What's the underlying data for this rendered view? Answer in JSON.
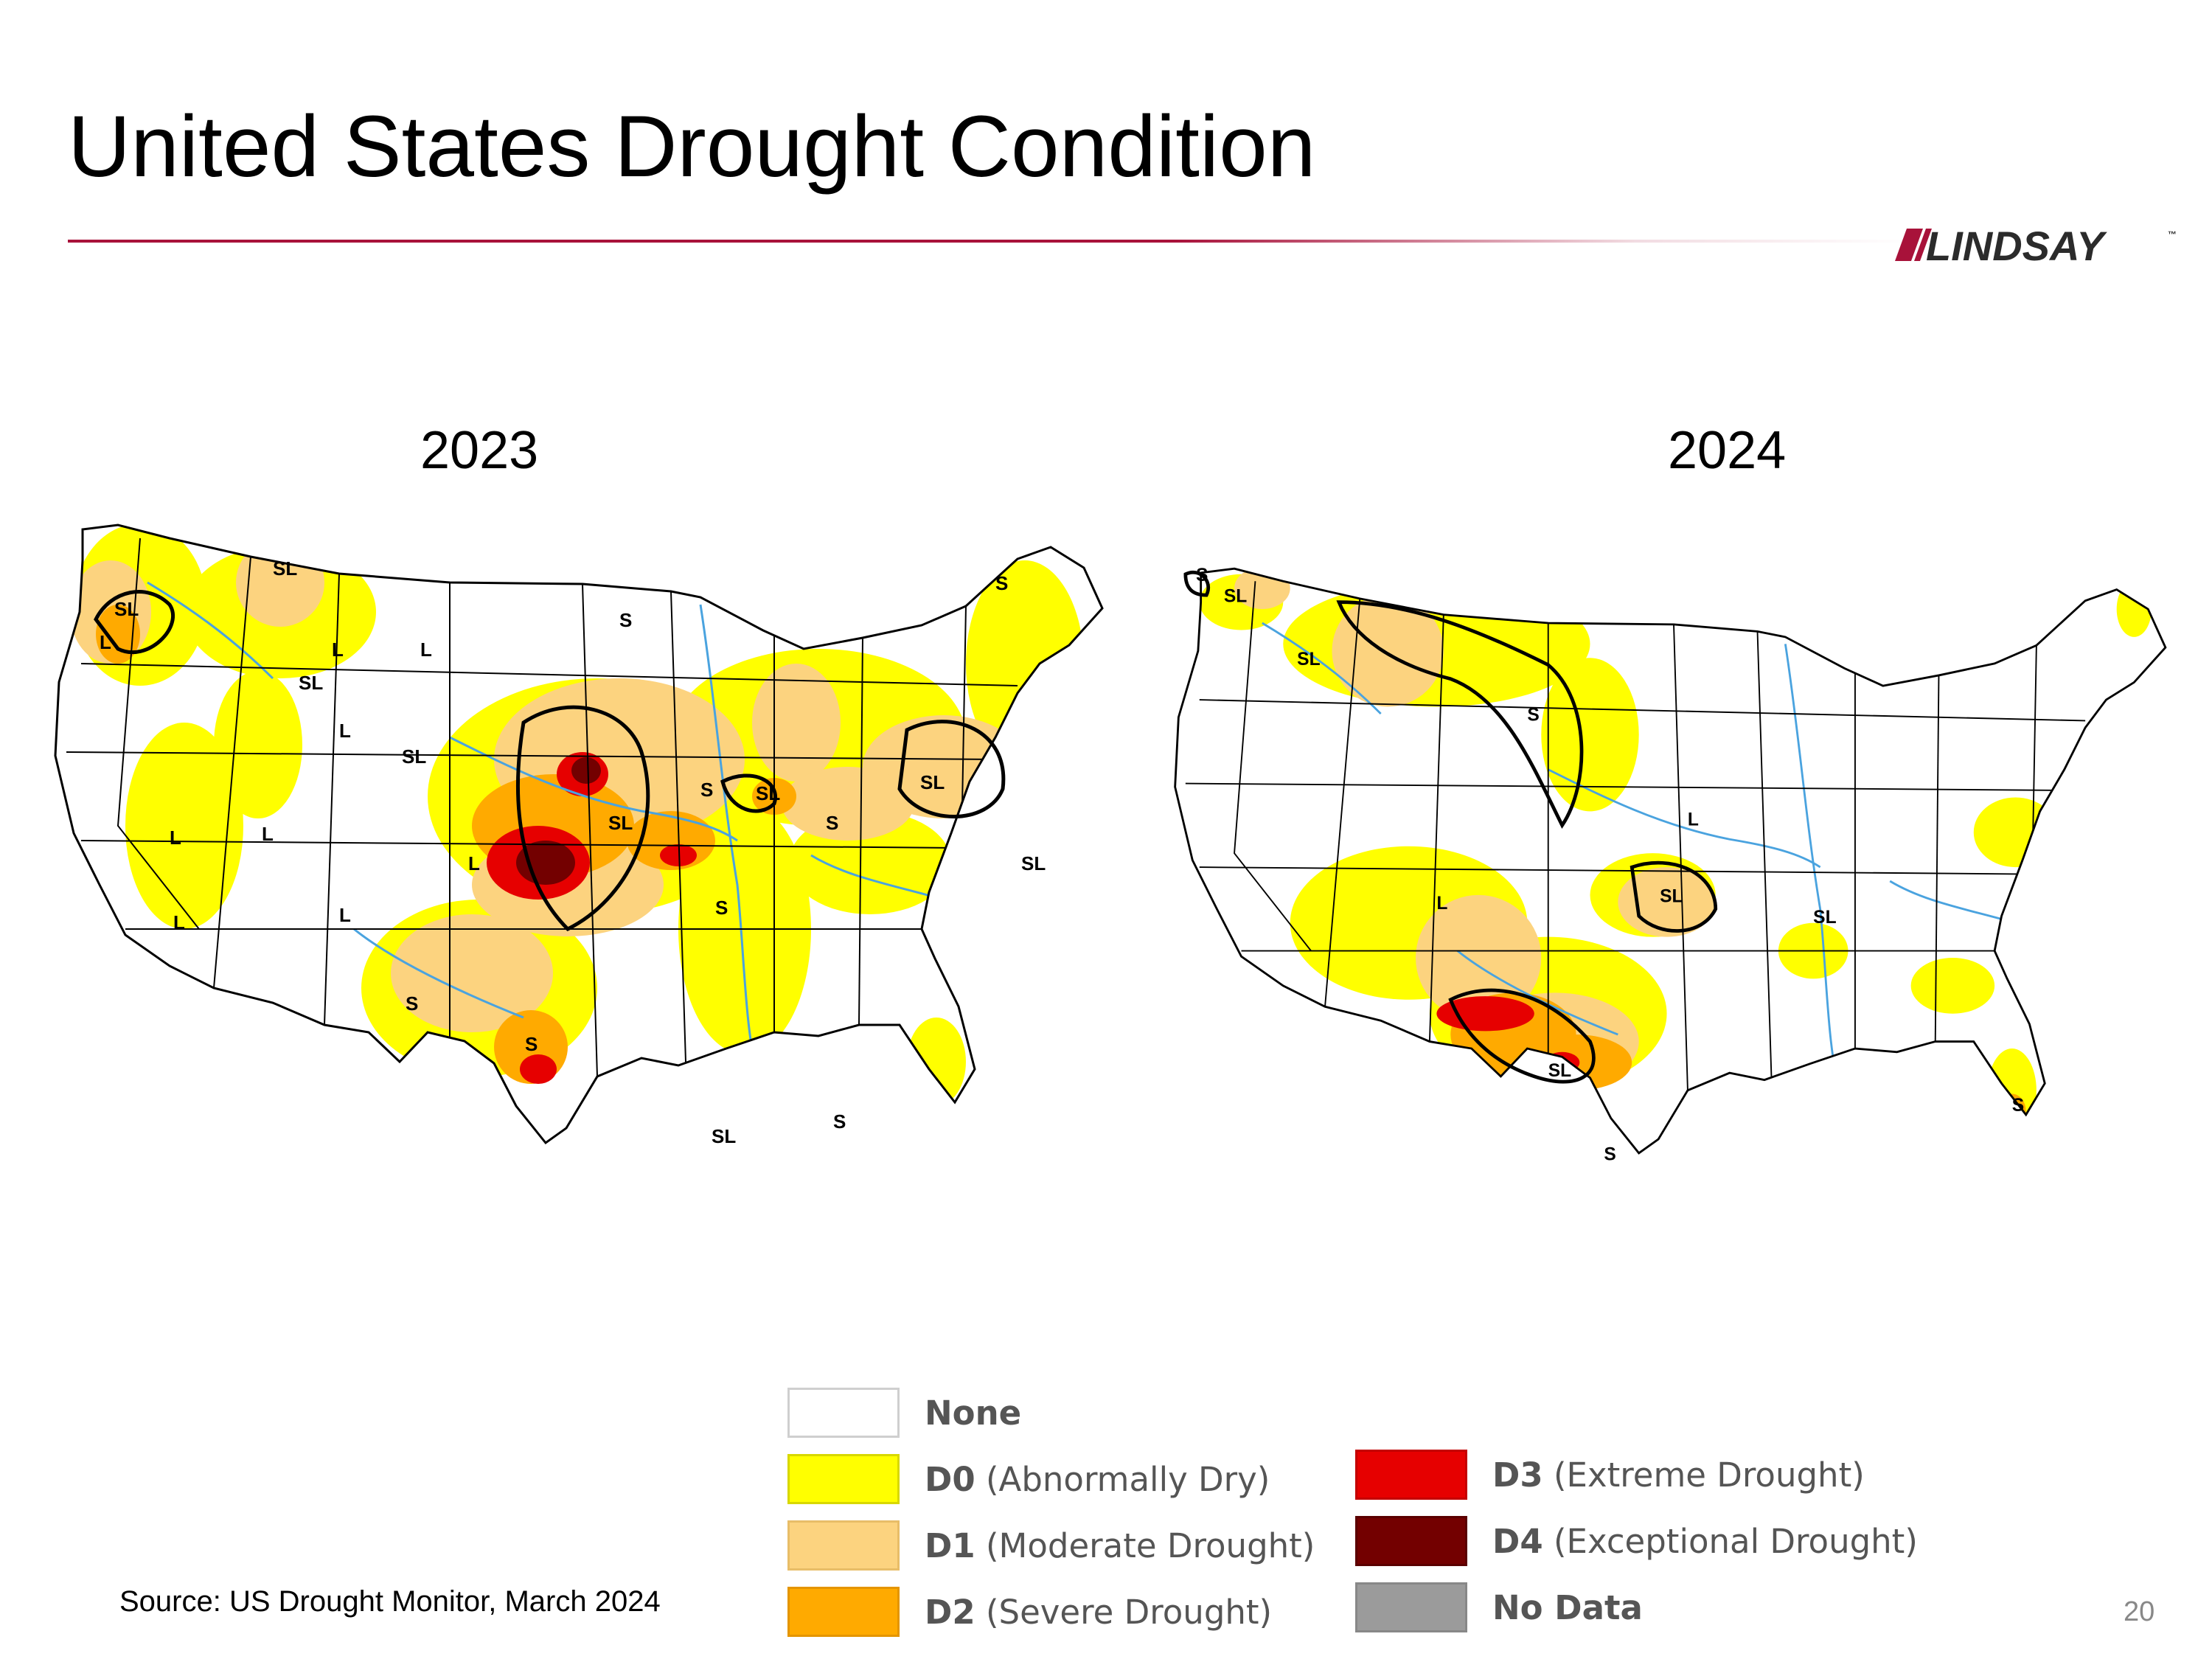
{
  "title": "United States Drought Condition",
  "logo_text": "LINDSAY",
  "logo_tm": "™",
  "colors": {
    "accent": "#a8123a",
    "none": "#ffffff",
    "d0": "#ffff00",
    "d1": "#fcd37f",
    "d2": "#ffaa00",
    "d3": "#e60000",
    "d4": "#730000",
    "nodata": "#9b9b9b",
    "outline": "#000000",
    "rivers": "#4aa3df"
  },
  "maps": [
    {
      "year": "2023",
      "labels": [
        "SL",
        "SL",
        "L",
        "SL",
        "L",
        "L",
        "S",
        "SL",
        "L",
        "L",
        "L",
        "SL",
        "S",
        "SL",
        "S",
        "S",
        "SL",
        "L",
        "L",
        "L",
        "S",
        "SL",
        "S",
        "S",
        "SL",
        "S"
      ]
    },
    {
      "year": "2024",
      "labels": [
        "S",
        "SL",
        "SL",
        "S",
        "L",
        "SL",
        "L",
        "SL",
        "SL",
        "S",
        "S"
      ]
    }
  ],
  "legend": [
    {
      "code": "None",
      "desc": "",
      "color": "#ffffff"
    },
    {
      "code": "D0",
      "desc": "(Abnormally Dry)",
      "color": "#ffff00"
    },
    {
      "code": "D1",
      "desc": "(Moderate Drought)",
      "color": "#fcd37f"
    },
    {
      "code": "D2",
      "desc": "(Severe Drought)",
      "color": "#ffaa00"
    },
    {
      "code": "D3",
      "desc": "(Extreme Drought)",
      "color": "#e60000"
    },
    {
      "code": "D4",
      "desc": "(Exceptional Drought)",
      "color": "#730000"
    },
    {
      "code": "No Data",
      "desc": "",
      "color": "#9b9b9b"
    }
  ],
  "source": "Source: US Drought Monitor, March 2024",
  "page_number": "20"
}
